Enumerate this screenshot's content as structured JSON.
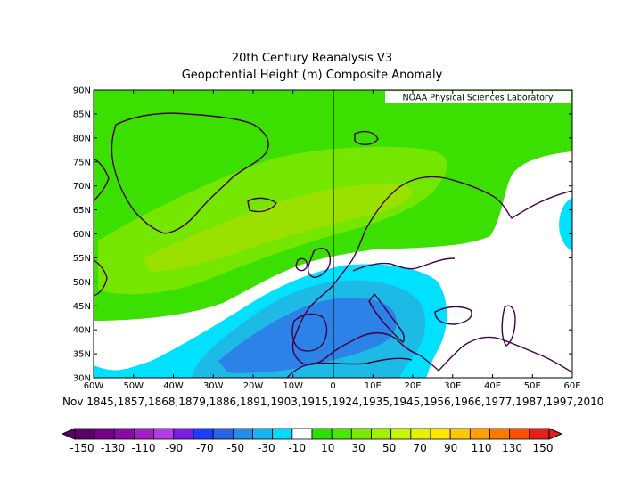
{
  "title": "20th Century Reanalysis V3",
  "subtitle": "Geopotential Height (m) Composite Anomaly",
  "credit": "NOAA Physical Sciences Laboratory",
  "dates": "Nov 1845,1857,1868,1879,1886,1891,1903,1915,1924,1935,1945,1956,1966,1977,1987,1997,2010",
  "lon_labels": [
    "60W",
    "50W",
    "40W",
    "30W",
    "20W",
    "10W",
    "0",
    "10E",
    "20E",
    "30E",
    "40E",
    "50E",
    "60E"
  ],
  "lat_labels": [
    "90N",
    "85N",
    "80N",
    "75N",
    "70N",
    "65N",
    "60N",
    "55N",
    "50N",
    "45N",
    "40N",
    "35N",
    "30N"
  ],
  "colorbar": {
    "labels": [
      "-150",
      "-130",
      "-110",
      "-90",
      "-70",
      "-50",
      "-30",
      "-10",
      "10",
      "30",
      "50",
      "70",
      "90",
      "110",
      "130",
      "150"
    ],
    "colors": [
      "#5a0066",
      "#730087",
      "#8b0aa5",
      "#a31ec8",
      "#b43ce6",
      "#7a1ee6",
      "#1e3cff",
      "#2864e6",
      "#1e90eb",
      "#14b4f0",
      "#00dcff",
      "#ffffff",
      "#2ce000",
      "#4ce600",
      "#78eb00",
      "#a0f000",
      "#c8f500",
      "#e6f000",
      "#ffe600",
      "#ffc800",
      "#ffa000",
      "#ff7800",
      "#ff5000",
      "#e61e1e"
    ],
    "unit": "m"
  },
  "colors": {
    "land_outline": "#400045",
    "green_weak": "#3ce000",
    "green_mid": "#78e600",
    "green_strong": "#9be100",
    "cyan_weak": "#00e1ff",
    "blue_mid": "#1ebae6",
    "blue_strong": "#2c82e6"
  }
}
